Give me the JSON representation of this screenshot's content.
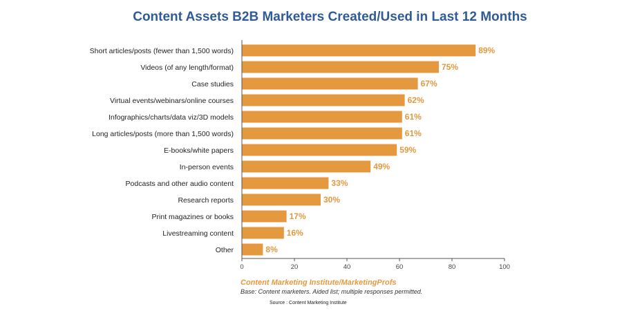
{
  "chart_data": {
    "type": "bar",
    "orientation": "horizontal",
    "title": "Content Assets B2B Marketers Created/Used in Last 12 Months",
    "categories": [
      "Short articles/posts (fewer than 1,500 words)",
      "Videos (of any length/format)",
      "Case studies",
      "Virtual events/webinars/online courses",
      "Infographics/charts/data viz/3D models",
      "Long articles/posts (more than 1,500 words)",
      "E-books/white papers",
      "In-person events",
      "Podcasts and other audio content",
      "Research reports",
      "Print magazines or books",
      "Livestreaming content",
      "Other"
    ],
    "values": [
      89,
      75,
      67,
      62,
      61,
      61,
      59,
      49,
      33,
      30,
      17,
      16,
      8
    ],
    "value_labels": [
      "89%",
      "75%",
      "67%",
      "62%",
      "61%",
      "61%",
      "59%",
      "49%",
      "33%",
      "30%",
      "17%",
      "16%",
      "8%"
    ],
    "xlim": [
      0,
      100
    ],
    "xticks": [
      0,
      20,
      40,
      60,
      80,
      100
    ],
    "grid": false,
    "legend": "none"
  },
  "colors": {
    "bar": "#e4993f",
    "value_label": "#e4993f",
    "title": "#2f5b96",
    "axis": "#555555"
  },
  "footer": {
    "brand": "Content Marketing Institute/MarketingProfs",
    "base": "Base: Content marketers. Aided list; multiple responses permitted.",
    "source": "Source : Content Marketing Institute"
  }
}
